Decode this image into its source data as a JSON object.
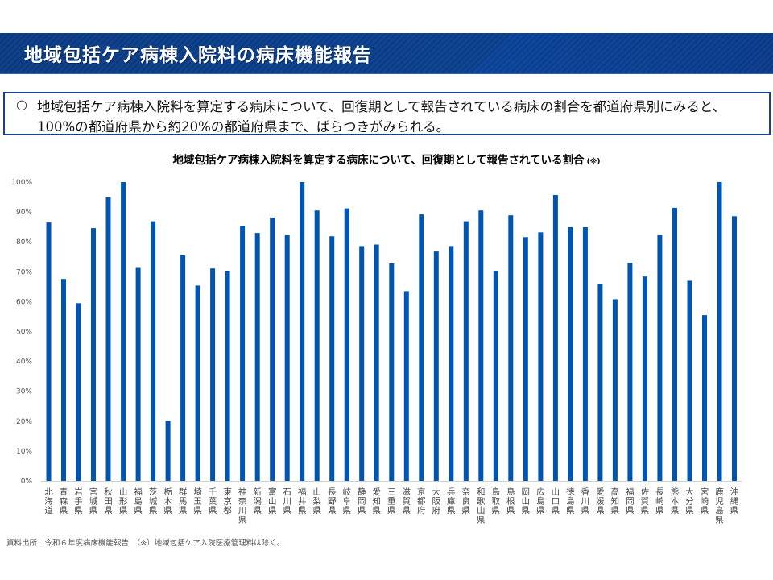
{
  "header": {
    "title": "地域包括ケア病棟入院料の病床機能報告"
  },
  "summary": {
    "bullet": "○",
    "line1": "地域包括ケア病棟入院料を算定する病床について、回復期として報告されている病床の割合を都道府県別にみると、",
    "line2": "100%の都道府県から約20%の都道府県まで、ばらつきがみられる。"
  },
  "colors": {
    "header_bg": "#0b3f8c",
    "bar": "#0055b3",
    "box_border": "#1a3f8c"
  },
  "chart_data": {
    "type": "bar",
    "title": "地域包括ケア病棟入院料を算定する病床について、回復期として報告されている割合",
    "title_note": "(※)",
    "xlabel": "",
    "ylabel": "",
    "ylim": [
      0,
      100
    ],
    "y_ticks": [
      "0%",
      "10%",
      "20%",
      "30%",
      "40%",
      "50%",
      "60%",
      "70%",
      "80%",
      "90%",
      "100%"
    ],
    "grid": false,
    "legend": "none",
    "categories": [
      "北海道",
      "青森県",
      "岩手県",
      "宮城県",
      "秋田県",
      "山形県",
      "福島県",
      "茨城県",
      "栃木県",
      "群馬県",
      "埼玉県",
      "千葉県",
      "東京都",
      "神奈川県",
      "新潟県",
      "富山県",
      "石川県",
      "福井県",
      "山梨県",
      "長野県",
      "岐阜県",
      "静岡県",
      "愛知県",
      "三重県",
      "滋賀県",
      "京都府",
      "大阪府",
      "兵庫県",
      "奈良県",
      "和歌山県",
      "鳥取県",
      "島根県",
      "岡山県",
      "広島県",
      "山口県",
      "徳島県",
      "香川県",
      "愛媛県",
      "高知県",
      "福岡県",
      "佐賀県",
      "長崎県",
      "熊本県",
      "大分県",
      "宮崎県",
      "鹿児島県",
      "沖縄県"
    ],
    "values": [
      86.5,
      67.6,
      59.5,
      84.6,
      95.0,
      100,
      71.3,
      86.9,
      20.1,
      75.5,
      65.4,
      71.1,
      70.2,
      85.4,
      83.0,
      88.1,
      82.2,
      100,
      90.5,
      81.9,
      91.2,
      78.6,
      79.1,
      72.8,
      63.5,
      89.2,
      76.8,
      78.6,
      86.9,
      90.5,
      70.3,
      88.9,
      81.6,
      83.2,
      95.7,
      84.9,
      84.9,
      66.0,
      60.8,
      73.0,
      68.4,
      82.2,
      91.4,
      67.0,
      55.5,
      100,
      88.6
    ]
  },
  "footer": {
    "source": "資料出所：令和６年度病床機能報告　（※）地域包括ケア入院医療管理料は除く。"
  }
}
